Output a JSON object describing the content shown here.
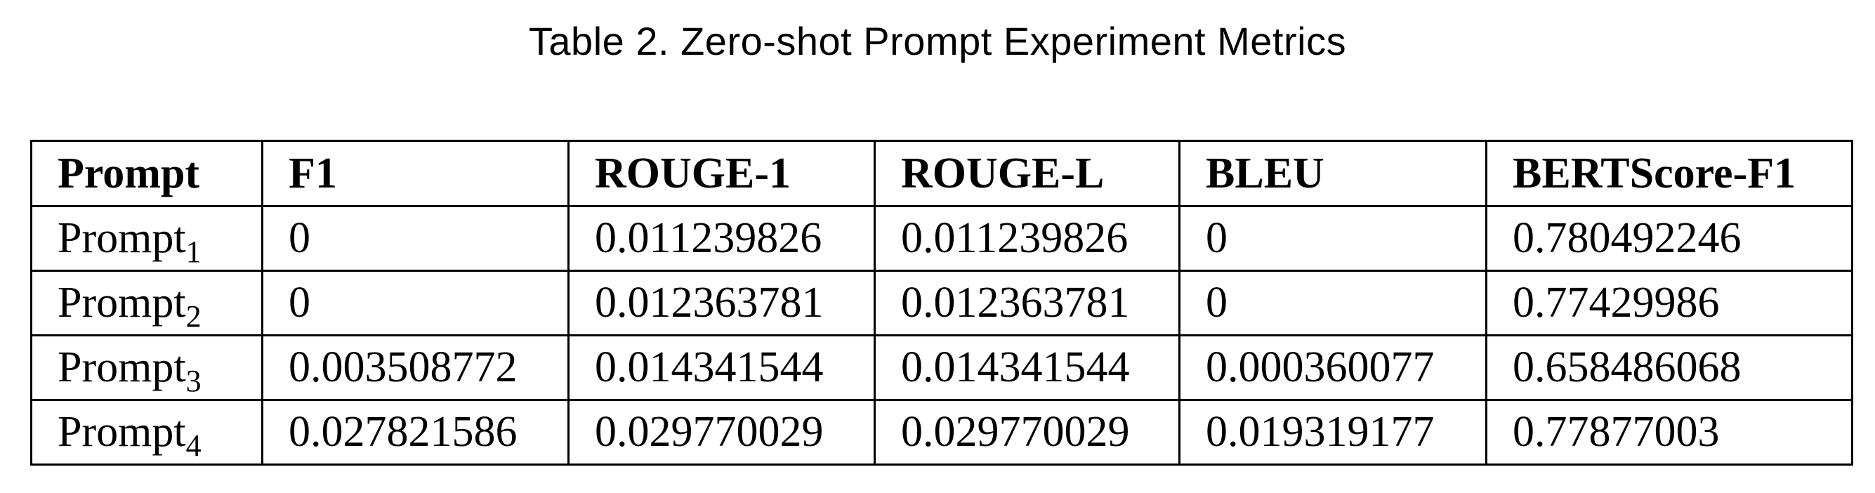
{
  "caption": "Table 2.  Zero-shot Prompt Experiment Metrics",
  "table": {
    "headers": [
      "Prompt",
      "F1",
      "ROUGE-1",
      "ROUGE-L",
      "BLEU",
      "BERTScore-F1"
    ],
    "rows": [
      {
        "prompt_base": "Prompt",
        "prompt_sub": "1",
        "values": [
          "0",
          "0.011239826",
          "0.011239826",
          "0",
          "0.780492246"
        ]
      },
      {
        "prompt_base": "Prompt",
        "prompt_sub": "2",
        "values": [
          "0",
          "0.012363781",
          "0.012363781",
          "0",
          "0.77429986"
        ]
      },
      {
        "prompt_base": "Prompt",
        "prompt_sub": "3",
        "values": [
          "0.003508772",
          "0.014341544",
          "0.014341544",
          "0.000360077",
          "0.658486068"
        ]
      },
      {
        "prompt_base": "Prompt",
        "prompt_sub": "4",
        "values": [
          "0.027821586",
          "0.029770029",
          "0.029770029",
          "0.019319177",
          "0.77877003"
        ]
      }
    ]
  }
}
